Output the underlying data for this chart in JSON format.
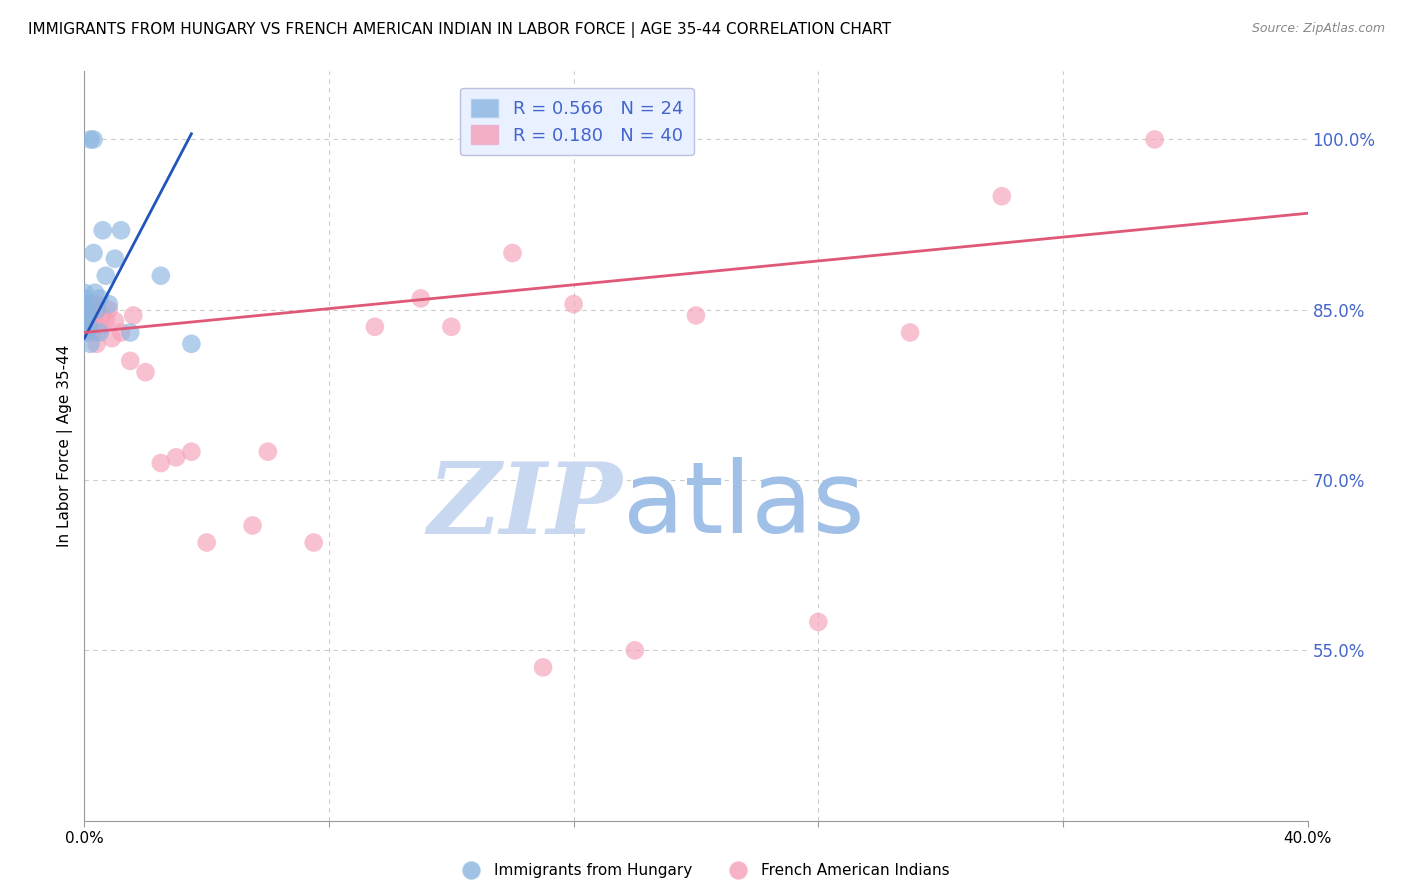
{
  "title": "IMMIGRANTS FROM HUNGARY VS FRENCH AMERICAN INDIAN IN LABOR FORCE | AGE 35-44 CORRELATION CHART",
  "source": "Source: ZipAtlas.com",
  "ylabel": "In Labor Force | Age 35-44",
  "blue_R": 0.566,
  "blue_N": 24,
  "pink_R": 0.18,
  "pink_N": 40,
  "blue_label": "Immigrants from Hungary",
  "pink_label": "French American Indians",
  "blue_color": "#8ab4e0",
  "pink_color": "#f4a0b8",
  "blue_line_color": "#2255bb",
  "pink_line_color": "#e05878",
  "background_color": "#ffffff",
  "blue_x": [
    0.0,
    0.0,
    0.0,
    0.0,
    0.1,
    0.1,
    0.1,
    0.15,
    0.2,
    0.2,
    0.3,
    0.3,
    0.35,
    0.4,
    0.5,
    0.5,
    0.6,
    0.7,
    0.8,
    1.0,
    1.2,
    1.5,
    2.5,
    3.5
  ],
  "blue_y": [
    84.0,
    85.5,
    86.0,
    86.5,
    83.0,
    84.5,
    85.0,
    83.5,
    82.0,
    100.0,
    100.0,
    90.0,
    86.5,
    85.0,
    86.0,
    83.0,
    92.0,
    88.0,
    85.5,
    89.5,
    92.0,
    83.0,
    88.0,
    82.0
  ],
  "pink_x": [
    0.0,
    0.0,
    0.05,
    0.1,
    0.15,
    0.2,
    0.25,
    0.3,
    0.3,
    0.4,
    0.4,
    0.5,
    0.6,
    0.7,
    0.8,
    0.9,
    1.0,
    1.2,
    1.5,
    1.6,
    2.0,
    2.5,
    3.0,
    3.5,
    4.0,
    5.5,
    6.0,
    7.5,
    9.5,
    11.0,
    12.0,
    14.0,
    15.0,
    16.0,
    18.0,
    20.0,
    24.0,
    27.0,
    30.0,
    35.0
  ],
  "pink_y": [
    83.0,
    85.0,
    84.5,
    85.5,
    84.0,
    83.0,
    85.5,
    83.0,
    84.5,
    85.5,
    82.0,
    83.5,
    84.5,
    84.0,
    85.0,
    82.5,
    84.0,
    83.0,
    80.5,
    84.5,
    79.5,
    71.5,
    72.0,
    72.5,
    64.5,
    66.0,
    72.5,
    64.5,
    83.5,
    86.0,
    83.5,
    90.0,
    53.5,
    85.5,
    55.0,
    84.5,
    57.5,
    83.0,
    95.0,
    100.0
  ],
  "xlim": [
    0.0,
    40.0
  ],
  "ylim": [
    40.0,
    106.0
  ],
  "xticks": [
    0.0,
    8.0,
    16.0,
    24.0,
    32.0,
    40.0
  ],
  "xtick_labels": [
    "0.0%",
    "",
    "",
    "",
    "",
    "40.0%"
  ],
  "yticks_right": [
    55.0,
    70.0,
    85.0,
    100.0
  ],
  "grid_color": "#cccccc",
  "watermark_zip": "ZIP",
  "watermark_atlas": "atlas",
  "watermark_color_zip": "#c8d8f0",
  "watermark_color_atlas": "#a0c0e8",
  "title_fontsize": 11,
  "axis_label_color": "#4466cc",
  "legend_box_color": "#e8f0ff",
  "blue_trend_x0": 0.0,
  "blue_trend_x1": 3.5,
  "blue_trend_y0": 82.5,
  "blue_trend_y1": 100.5,
  "pink_trend_x0": 0.0,
  "pink_trend_x1": 40.0,
  "pink_trend_y0": 83.0,
  "pink_trend_y1": 93.5
}
